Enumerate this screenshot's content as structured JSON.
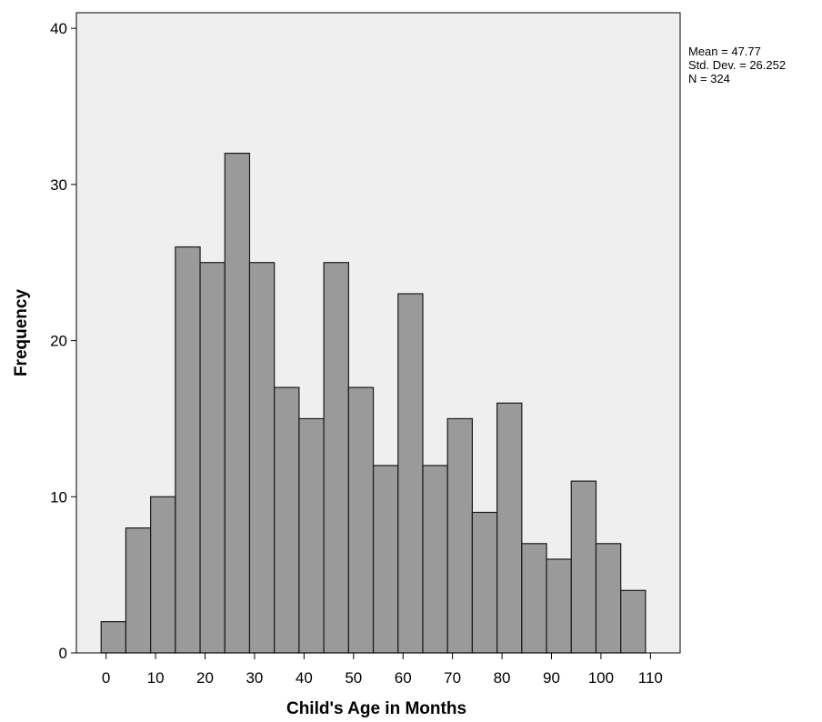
{
  "chart_data": {
    "type": "bar",
    "subtype": "histogram",
    "xlabel": "Child's Age in Months",
    "ylabel": "Frequency",
    "xlim": [
      -6,
      116
    ],
    "ylim": [
      0,
      41
    ],
    "x_ticks": [
      0,
      10,
      20,
      30,
      40,
      50,
      60,
      70,
      80,
      90,
      100,
      110
    ],
    "y_ticks": [
      0,
      10,
      20,
      30,
      40
    ],
    "bin_width": 5,
    "bins": [
      {
        "start": -1,
        "value": 2
      },
      {
        "start": 4,
        "value": 8
      },
      {
        "start": 9,
        "value": 10
      },
      {
        "start": 14,
        "value": 26
      },
      {
        "start": 19,
        "value": 25
      },
      {
        "start": 24,
        "value": 32
      },
      {
        "start": 29,
        "value": 25
      },
      {
        "start": 34,
        "value": 17
      },
      {
        "start": 39,
        "value": 15
      },
      {
        "start": 44,
        "value": 25
      },
      {
        "start": 49,
        "value": 17
      },
      {
        "start": 54,
        "value": 12
      },
      {
        "start": 59,
        "value": 23
      },
      {
        "start": 64,
        "value": 12
      },
      {
        "start": 69,
        "value": 15
      },
      {
        "start": 74,
        "value": 9
      },
      {
        "start": 79,
        "value": 16
      },
      {
        "start": 84,
        "value": 7
      },
      {
        "start": 89,
        "value": 6
      },
      {
        "start": 94,
        "value": 11
      },
      {
        "start": 99,
        "value": 7
      },
      {
        "start": 104,
        "value": 4
      }
    ],
    "grid": false,
    "colors": {
      "plot_background": "#efefef",
      "bar_fill": "#9a9a9a",
      "bar_stroke": "#1a1a1a"
    },
    "stats": {
      "mean": "Mean = 47.77",
      "std_dev": "Std. Dev. = 26.252",
      "n": "N = 324"
    }
  }
}
